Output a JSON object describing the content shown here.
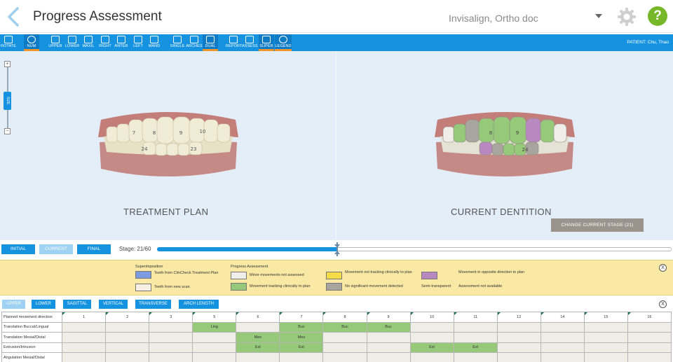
{
  "header": {
    "title": "Progress Assessment",
    "account": "Invisalign, Ortho doc"
  },
  "toolbar": {
    "buttons": [
      {
        "label": "ROTATE"
      },
      {
        "label": "NUM"
      },
      {
        "label": "UPPER"
      },
      {
        "label": "LOWER"
      },
      {
        "label": "MAXIL"
      },
      {
        "label": "RIGHT"
      },
      {
        "label": "ANTER"
      },
      {
        "label": "LEFT"
      },
      {
        "label": "MAND"
      },
      {
        "label": "SINGLE"
      },
      {
        "label": "ARCHES"
      },
      {
        "label": "DUAL"
      },
      {
        "label": "REPORT"
      },
      {
        "label": "ASSESS"
      },
      {
        "label": "SUPER"
      },
      {
        "label": "LEGEND"
      }
    ],
    "patient": "PATIENT: Chu, Thao"
  },
  "viewport": {
    "size_label": "SIZE",
    "left_label": "TREATMENT PLAN",
    "right_label": "CURRENT DENTITION",
    "left_teeth_numbers": [
      "7",
      "8",
      "9",
      "10",
      "23",
      "24"
    ],
    "right_teeth_numbers": [
      "8",
      "9",
      "24"
    ],
    "change_stage_label": "CHANGE CURRENT STAGE (21)"
  },
  "stage": {
    "buttons": [
      "INITIAL",
      "CURRENT",
      "FINAL"
    ],
    "label": "Stage:",
    "value": "21/60",
    "current": 21,
    "total": 60
  },
  "legend": {
    "superimposition_title": "Superimposition",
    "progress_title": "Progress Assessment",
    "items": [
      {
        "color": "#7c9be0",
        "text": "Teeth from ClinCheck Treatment Plan"
      },
      {
        "color": "#f8efe3",
        "text": "Teeth from new scan"
      },
      {
        "color": "#efeee8",
        "text": "Minor movements not assessed"
      },
      {
        "color": "#96c97a",
        "text": "Movement tracking clinically to plan"
      },
      {
        "color": "#f5dc47",
        "text": "Movement not tracking clinically to plan"
      },
      {
        "color": "#a8a49e",
        "text": "No significant movement detected"
      },
      {
        "color": "#b888c0",
        "text": "Movement in opposite direction to plan"
      }
    ],
    "semi_transparent": "Semi-transparent",
    "not_available": "Assessment not available",
    "close": "X"
  },
  "filters": {
    "buttons": [
      "UPPER",
      "LOWER",
      "SAGITTAL",
      "VERTICAL",
      "TRANSVERSE",
      "ARCH LENGTH"
    ],
    "close": "X"
  },
  "table": {
    "header": [
      "Planned movement direction",
      "1",
      "2",
      "3",
      "5",
      "6",
      "7",
      "8",
      "9",
      "10",
      "11",
      "12",
      "14",
      "15",
      "16"
    ],
    "rows": [
      {
        "label": "Translation Buccal/Lingual",
        "cells": [
          "",
          "",
          "",
          "Ling",
          "",
          "Buc",
          "Buc",
          "Buc",
          "",
          "",
          "",
          "",
          "",
          ""
        ]
      },
      {
        "label": "Translation Mesial/Distal",
        "cells": [
          "",
          "",
          "",
          "",
          "Mes",
          "Mes",
          "",
          "",
          "",
          "",
          "",
          "",
          "",
          ""
        ]
      },
      {
        "label": "Extrusion/Intrusion",
        "cells": [
          "",
          "",
          "",
          "",
          "Ext",
          "Ext",
          "",
          "",
          "Ext",
          "Ext",
          "",
          "",
          "",
          ""
        ]
      },
      {
        "label": "Angulation Mesial/Distal",
        "cells": [
          "",
          "",
          "",
          "",
          "",
          "",
          "",
          "",
          "",
          "",
          "",
          "",
          "",
          ""
        ]
      }
    ]
  },
  "colors": {
    "accent": "#1593e0",
    "active_underline": "#f1952a",
    "help": "#77b82a",
    "tracking_green": "#96c97a"
  }
}
